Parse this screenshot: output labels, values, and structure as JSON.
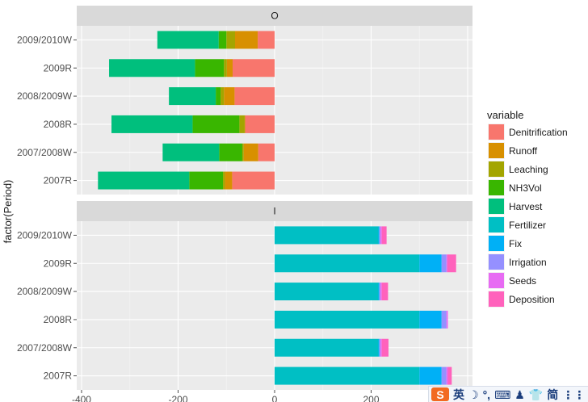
{
  "chart_data": {
    "type": "bar",
    "orientation": "horizontal",
    "stacked": true,
    "ylabel": "factor(Period)",
    "xlabel": "",
    "xlim": [
      -410,
      410
    ],
    "x_ticks": [
      -400,
      -200,
      0,
      200
    ],
    "x_tick_labels": [
      "-400",
      "-200",
      "0",
      "200"
    ],
    "categories": [
      "2009/2010W",
      "2009R",
      "2008/2009W",
      "2008R",
      "2007/2008W",
      "2007R"
    ],
    "legend": {
      "title": "variable",
      "position": "right",
      "entries": [
        {
          "name": "Denitrification",
          "color": "#F8766D"
        },
        {
          "name": "Runoff",
          "color": "#D89000"
        },
        {
          "name": "Leaching",
          "color": "#A3A500"
        },
        {
          "name": "NH3Vol",
          "color": "#39B600"
        },
        {
          "name": "Harvest",
          "color": "#00BF7D"
        },
        {
          "name": "Fertilizer",
          "color": "#00BFC4"
        },
        {
          "name": "Fix",
          "color": "#00B0F6"
        },
        {
          "name": "Irrigation",
          "color": "#9590FF"
        },
        {
          "name": "Seeds",
          "color": "#E76BF3"
        },
        {
          "name": "Deposition",
          "color": "#FF62BC"
        }
      ]
    },
    "panels": [
      {
        "label": "O",
        "series": [
          {
            "name": "Denitrification",
            "values": [
              -35,
              -87,
              -83,
              -61,
              -34,
              -88
            ]
          },
          {
            "name": "Runoff",
            "values": [
              -47,
              -12,
              -22,
              -1,
              -30,
              -15
            ]
          },
          {
            "name": "Leaching",
            "values": [
              -18,
              -6,
              -7,
              -11,
              -3,
              -4
            ]
          },
          {
            "name": "NH3Vol",
            "values": [
              -16,
              -60,
              -10,
              -97,
              -48,
              -70
            ]
          },
          {
            "name": "Harvest",
            "values": [
              -127,
              -178,
              -97,
              -168,
              -117,
              -189
            ]
          },
          {
            "name": "Fertilizer",
            "values": [
              0,
              0,
              0,
              0,
              0,
              0
            ]
          },
          {
            "name": "Fix",
            "values": [
              0,
              0,
              0,
              0,
              0,
              0
            ]
          },
          {
            "name": "Irrigation",
            "values": [
              0,
              0,
              0,
              0,
              0,
              0
            ]
          },
          {
            "name": "Seeds",
            "values": [
              0,
              0,
              0,
              0,
              0,
              0
            ]
          },
          {
            "name": "Deposition",
            "values": [
              0,
              0,
              0,
              0,
              0,
              0
            ]
          }
        ]
      },
      {
        "label": "I",
        "series": [
          {
            "name": "Denitrification",
            "values": [
              0,
              0,
              0,
              0,
              0,
              0
            ]
          },
          {
            "name": "Runoff",
            "values": [
              0,
              0,
              0,
              0,
              0,
              0
            ]
          },
          {
            "name": "Leaching",
            "values": [
              0,
              0,
              0,
              0,
              0,
              0
            ]
          },
          {
            "name": "NH3Vol",
            "values": [
              0,
              0,
              0,
              0,
              0,
              0
            ]
          },
          {
            "name": "Harvest",
            "values": [
              0,
              0,
              0,
              0,
              0,
              0
            ]
          },
          {
            "name": "Fertilizer",
            "values": [
              215,
              300,
              215,
              300,
              215,
              300
            ]
          },
          {
            "name": "Fix",
            "values": [
              2,
              46,
              2,
              46,
              2,
              46
            ]
          },
          {
            "name": "Irrigation",
            "values": [
              2,
              10,
              2,
              10,
              2,
              10
            ]
          },
          {
            "name": "Seeds",
            "values": [
              3,
              2,
              3,
              3,
              3,
              3
            ]
          },
          {
            "name": "Deposition",
            "values": [
              10,
              18,
              13,
              0,
              14,
              8
            ]
          }
        ]
      }
    ]
  },
  "ime_toolbar": {
    "logo": "S",
    "items": [
      "英",
      "☽",
      "°,",
      "⌨",
      "♟",
      "👕",
      "简",
      "⋮⋮"
    ]
  }
}
